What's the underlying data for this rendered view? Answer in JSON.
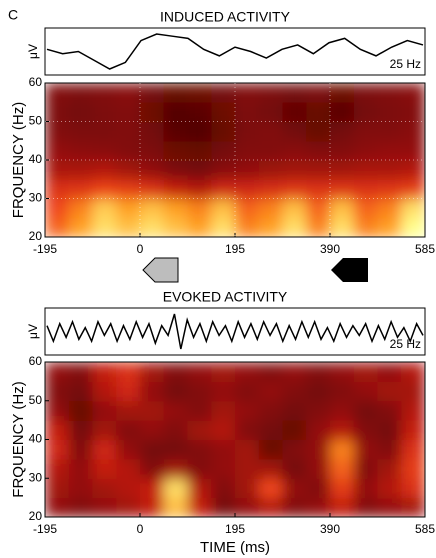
{
  "panel_label": "C",
  "chart_data": [
    {
      "type": "heatmap",
      "title": "INDUCED ACTIVITY",
      "ylabel": "FRQUENCY (Hz)",
      "xlim": [
        -195,
        585
      ],
      "xticks": [
        -195,
        0,
        195,
        390,
        585
      ],
      "ylim": [
        20,
        60
      ],
      "yticks": [
        20,
        30,
        40,
        50,
        60
      ],
      "grid": true,
      "trace": {
        "ylabel": "μV",
        "label": "25 Hz",
        "values": [
          0.2,
          0.0,
          0.1,
          -0.3,
          -0.7,
          -0.4,
          0.6,
          0.9,
          0.8,
          0.7,
          0.2,
          -0.1,
          0.3,
          0.1,
          -0.2,
          0.2,
          0.4,
          0.0,
          0.5,
          0.7,
          0.2,
          -0.1,
          0.3,
          0.6,
          0.4
        ]
      },
      "z": [
        [
          0.75,
          0.85,
          0.95,
          0.9,
          0.95,
          0.9,
          0.85,
          0.95,
          0.8,
          0.85,
          0.95,
          0.8,
          0.95,
          0.8,
          0.85,
          1.0
        ],
        [
          0.7,
          0.8,
          0.92,
          0.85,
          0.9,
          0.85,
          0.8,
          0.9,
          0.75,
          0.8,
          0.9,
          0.75,
          0.9,
          0.75,
          0.8,
          0.95
        ],
        [
          0.6,
          0.62,
          0.68,
          0.65,
          0.6,
          0.5,
          0.45,
          0.55,
          0.55,
          0.58,
          0.62,
          0.6,
          0.62,
          0.6,
          0.62,
          0.65
        ],
        [
          0.42,
          0.42,
          0.45,
          0.4,
          0.35,
          0.28,
          0.25,
          0.32,
          0.35,
          0.38,
          0.4,
          0.4,
          0.4,
          0.42,
          0.42,
          0.45
        ],
        [
          0.35,
          0.33,
          0.32,
          0.3,
          0.28,
          0.22,
          0.2,
          0.25,
          0.3,
          0.3,
          0.32,
          0.3,
          0.3,
          0.33,
          0.35,
          0.35
        ],
        [
          0.3,
          0.28,
          0.28,
          0.3,
          0.25,
          0.15,
          0.12,
          0.2,
          0.28,
          0.3,
          0.25,
          0.2,
          0.25,
          0.3,
          0.3,
          0.32
        ],
        [
          0.28,
          0.25,
          0.28,
          0.3,
          0.22,
          0.12,
          0.15,
          0.22,
          0.28,
          0.25,
          0.18,
          0.2,
          0.15,
          0.25,
          0.28,
          0.3
        ],
        [
          0.3,
          0.28,
          0.3,
          0.32,
          0.25,
          0.2,
          0.22,
          0.25,
          0.3,
          0.28,
          0.25,
          0.28,
          0.22,
          0.28,
          0.3,
          0.32
        ]
      ]
    },
    {
      "type": "heatmap",
      "title": "EVOKED ACTIVITY",
      "ylabel": "FRQUENCY (Hz)",
      "xlabel": "TIME (ms)",
      "xlim": [
        -195,
        585
      ],
      "xticks": [
        -195,
        0,
        195,
        390,
        585
      ],
      "ylim": [
        20,
        60
      ],
      "yticks": [
        20,
        30,
        40,
        50,
        60
      ],
      "grid": false,
      "trace": {
        "ylabel": "μV",
        "label": "25 Hz",
        "values": [
          0.3,
          -0.5,
          0.4,
          -0.3,
          0.5,
          -0.4,
          0.2,
          -0.5,
          0.5,
          -0.2,
          0.4,
          -0.5,
          0.3,
          -0.4,
          0.5,
          -0.3,
          0.4,
          -0.6,
          0.3,
          -0.2,
          0.9,
          -0.9,
          0.6,
          -0.3,
          0.4,
          -0.5,
          0.5,
          -0.2,
          0.3,
          -0.5,
          0.5,
          -0.3,
          0.4,
          -0.4,
          0.5,
          -0.2,
          0.4,
          -0.5,
          0.3,
          -0.4,
          0.5,
          -0.3,
          0.5,
          -0.4,
          0.2,
          -0.5,
          0.4,
          -0.3,
          0.3,
          -0.2,
          0.4,
          -0.5,
          0.3,
          -0.4,
          0.5,
          -0.3,
          0.2,
          -0.5,
          0.4,
          -0.2
        ]
      },
      "z": [
        [
          0.35,
          0.3,
          0.35,
          0.4,
          0.5,
          0.9,
          0.5,
          0.25,
          0.35,
          0.45,
          0.3,
          0.35,
          0.5,
          0.3,
          0.35,
          0.4
        ],
        [
          0.4,
          0.35,
          0.4,
          0.45,
          0.5,
          0.95,
          0.45,
          0.3,
          0.4,
          0.7,
          0.35,
          0.3,
          0.65,
          0.35,
          0.45,
          0.6
        ],
        [
          0.45,
          0.35,
          0.5,
          0.45,
          0.3,
          0.4,
          0.3,
          0.35,
          0.4,
          0.4,
          0.25,
          0.35,
          0.75,
          0.3,
          0.4,
          0.65
        ],
        [
          0.55,
          0.3,
          0.55,
          0.35,
          0.25,
          0.25,
          0.3,
          0.35,
          0.4,
          0.2,
          0.3,
          0.35,
          0.8,
          0.35,
          0.3,
          0.6
        ],
        [
          0.5,
          0.25,
          0.4,
          0.3,
          0.35,
          0.3,
          0.4,
          0.45,
          0.3,
          0.25,
          0.2,
          0.35,
          0.45,
          0.3,
          0.25,
          0.5
        ],
        [
          0.35,
          0.2,
          0.35,
          0.4,
          0.4,
          0.35,
          0.3,
          0.4,
          0.35,
          0.3,
          0.25,
          0.3,
          0.35,
          0.25,
          0.3,
          0.45
        ],
        [
          0.3,
          0.25,
          0.45,
          0.55,
          0.35,
          0.25,
          0.3,
          0.35,
          0.3,
          0.35,
          0.3,
          0.25,
          0.3,
          0.35,
          0.4,
          0.4
        ],
        [
          0.35,
          0.3,
          0.5,
          0.6,
          0.4,
          0.3,
          0.35,
          0.4,
          0.35,
          0.3,
          0.35,
          0.3,
          0.35,
          0.4,
          0.35,
          0.45
        ]
      ]
    }
  ]
}
